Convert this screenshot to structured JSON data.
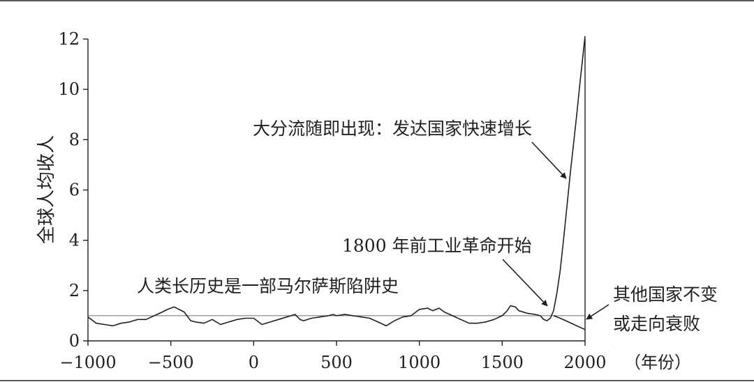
{
  "chart_data": {
    "type": "line",
    "title": "",
    "xlabel": "（年份）",
    "ylabel": "全球人均收人",
    "xlim": [
      -1000,
      2000
    ],
    "ylim": [
      0,
      12
    ],
    "xticks": [
      -1000,
      -500,
      0,
      500,
      1000,
      1500,
      2000
    ],
    "xtick_labels": [
      "−1000",
      "−500",
      "0",
      "500",
      "1000",
      "1500",
      "2000"
    ],
    "yticks": [
      0,
      2,
      4,
      6,
      8,
      10,
      12
    ],
    "ytick_labels": [
      "0",
      "2",
      "4",
      "6",
      "8",
      "10",
      "12"
    ],
    "reference_line": {
      "y": 1.0
    },
    "grid": false,
    "series": [
      {
        "x": [
          -1000,
          -950,
          -900,
          -850,
          -800,
          -750,
          -700,
          -650,
          -600,
          -550,
          -520,
          -480,
          -450,
          -420,
          -380,
          -350,
          -300,
          -250,
          -200,
          -150,
          -100,
          -50,
          0,
          50,
          100,
          150,
          200,
          250,
          280,
          300,
          350,
          400,
          450,
          480,
          500,
          550,
          600,
          650,
          700,
          750,
          800,
          850,
          900,
          950,
          1000,
          1050,
          1080,
          1100,
          1120,
          1150,
          1200,
          1250,
          1300,
          1350,
          1400,
          1450,
          1500,
          1530,
          1550,
          1580,
          1600,
          1650,
          1700,
          1730,
          1750,
          1770,
          1790,
          1810,
          1830,
          1850,
          1870,
          1890,
          1910,
          1930,
          1950,
          1970,
          1990,
          2000
        ],
        "values": [
          0.95,
          0.7,
          0.65,
          0.6,
          0.7,
          0.75,
          0.85,
          0.85,
          1.0,
          1.15,
          1.25,
          1.35,
          1.25,
          1.15,
          0.8,
          0.75,
          0.7,
          0.85,
          0.65,
          0.75,
          0.85,
          0.9,
          0.9,
          0.65,
          0.75,
          0.85,
          0.95,
          1.05,
          0.85,
          0.8,
          0.9,
          0.95,
          1.0,
          1.05,
          1.0,
          1.05,
          1.0,
          0.95,
          0.9,
          0.75,
          0.6,
          0.8,
          0.95,
          1.0,
          1.25,
          1.3,
          1.2,
          1.25,
          1.3,
          1.15,
          1.0,
          0.85,
          0.7,
          0.7,
          0.75,
          0.85,
          1.0,
          1.2,
          1.4,
          1.35,
          1.2,
          1.1,
          1.05,
          1.0,
          0.85,
          0.8,
          0.9,
          1.2,
          1.9,
          2.8,
          4.0,
          5.3,
          6.6,
          7.8,
          9.0,
          10.3,
          11.5,
          12.2
        ]
      },
      {
        "x": [
          1810,
          1850,
          1900,
          1950,
          2000
        ],
        "values": [
          1.0,
          0.9,
          0.75,
          0.6,
          0.45
        ]
      }
    ],
    "annotations": [
      {
        "text": "大分流随即出现：发达国家快速增长"
      },
      {
        "text": "1800 年前工业革命开始"
      },
      {
        "text": "人类长历史是一部马尔萨斯陷阱史"
      },
      {
        "lines": [
          "其他国家不变",
          "或走向衰败"
        ]
      }
    ]
  }
}
